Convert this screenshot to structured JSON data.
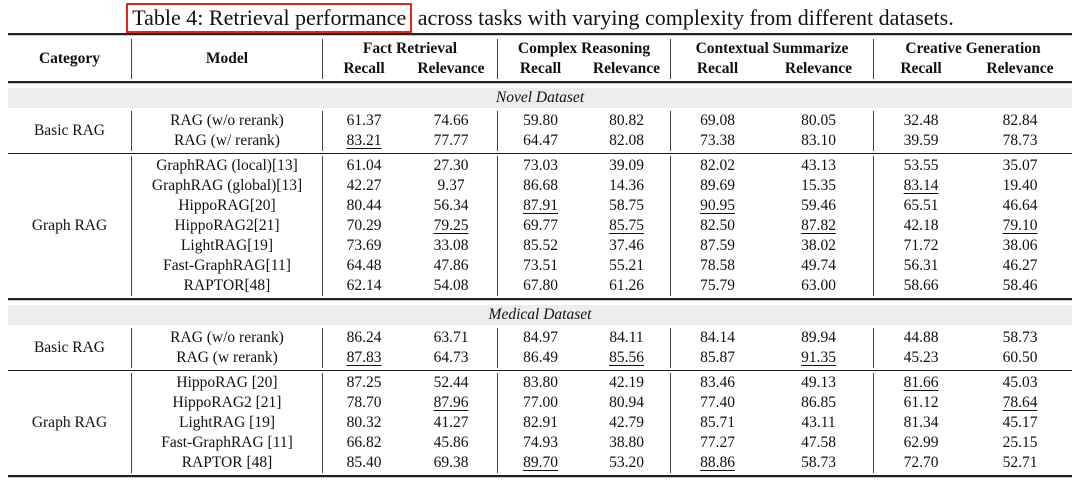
{
  "caption": {
    "highlighted": "Table 4: Retrieval performance",
    "rest": " across tasks with varying complexity from different datasets."
  },
  "colors": {
    "annotation_red": "#e2251d",
    "band_gray": "#ededed",
    "text": "#111111"
  },
  "header": {
    "category": "Category",
    "model": "Model",
    "groups": [
      {
        "label": "Fact Retrieval",
        "sub": [
          "Recall",
          "Relevance"
        ]
      },
      {
        "label": "Complex Reasoning",
        "sub": [
          "Recall",
          "Relevance"
        ]
      },
      {
        "label": "Contextual Summarize",
        "sub": [
          "Recall",
          "Relevance"
        ]
      },
      {
        "label": "Creative Generation",
        "sub": [
          "Recall",
          "Relevance"
        ]
      }
    ]
  },
  "sections": [
    {
      "dataset": "Novel Dataset",
      "groups": [
        {
          "category": "Basic RAG",
          "rows": [
            {
              "model": "RAG (w/o rerank)",
              "values": [
                "61.37",
                "74.66",
                "59.80",
                "80.82",
                "69.08",
                "80.05",
                "32.48",
                "82.84"
              ],
              "underline": []
            },
            {
              "model": "RAG (w/ rerank)",
              "values": [
                "83.21",
                "77.77",
                "64.47",
                "82.08",
                "73.38",
                "83.10",
                "39.59",
                "78.73"
              ],
              "underline": [
                0
              ]
            }
          ]
        },
        {
          "category": "Graph RAG",
          "rows": [
            {
              "model": "GraphRAG (local)[13]",
              "values": [
                "61.04",
                "27.30",
                "73.03",
                "39.09",
                "82.02",
                "43.13",
                "53.55",
                "35.07"
              ],
              "underline": []
            },
            {
              "model": "GraphRAG (global)[13]",
              "values": [
                "42.27",
                "9.37",
                "86.68",
                "14.36",
                "89.69",
                "15.35",
                "83.14",
                "19.40"
              ],
              "underline": [
                6
              ]
            },
            {
              "model": "HippoRAG[20]",
              "values": [
                "80.44",
                "56.34",
                "87.91",
                "58.75",
                "90.95",
                "59.46",
                "65.51",
                "46.64"
              ],
              "underline": [
                2,
                4
              ]
            },
            {
              "model": "HippoRAG2[21]",
              "values": [
                "70.29",
                "79.25",
                "69.77",
                "85.75",
                "82.50",
                "87.82",
                "42.18",
                "79.10"
              ],
              "underline": [
                1,
                3,
                5,
                7
              ]
            },
            {
              "model": "LightRAG[19]",
              "values": [
                "73.69",
                "33.08",
                "85.52",
                "37.46",
                "87.59",
                "38.02",
                "71.72",
                "38.06"
              ],
              "underline": []
            },
            {
              "model": "Fast-GraphRAG[11]",
              "values": [
                "64.48",
                "47.86",
                "73.51",
                "55.21",
                "78.58",
                "49.74",
                "56.31",
                "46.27"
              ],
              "underline": []
            },
            {
              "model": "RAPTOR[48]",
              "values": [
                "62.14",
                "54.08",
                "67.80",
                "61.26",
                "75.79",
                "63.00",
                "58.66",
                "58.46"
              ],
              "underline": []
            }
          ]
        }
      ]
    },
    {
      "dataset": "Medical Dataset",
      "groups": [
        {
          "category": "Basic RAG",
          "rows": [
            {
              "model": "RAG (w/o rerank)",
              "values": [
                "86.24",
                "63.71",
                "84.97",
                "84.11",
                "84.14",
                "89.94",
                "44.88",
                "58.73"
              ],
              "underline": []
            },
            {
              "model": "RAG (w rerank)",
              "values": [
                "87.83",
                "64.73",
                "86.49",
                "85.56",
                "85.87",
                "91.35",
                "45.23",
                "60.50"
              ],
              "underline": [
                0,
                3,
                5
              ]
            }
          ]
        },
        {
          "category": "Graph RAG",
          "rows": [
            {
              "model": "HippoRAG [20]",
              "values": [
                "87.25",
                "52.44",
                "83.80",
                "42.19",
                "83.46",
                "49.13",
                "81.66",
                "45.03"
              ],
              "underline": [
                6
              ]
            },
            {
              "model": "HippoRAG2 [21]",
              "values": [
                "78.70",
                "87.96",
                "77.00",
                "80.94",
                "77.40",
                "86.85",
                "61.12",
                "78.64"
              ],
              "underline": [
                1,
                7
              ]
            },
            {
              "model": "LightRAG [19]",
              "values": [
                "80.32",
                "41.27",
                "82.91",
                "42.79",
                "85.71",
                "43.11",
                "81.34",
                "45.17"
              ],
              "underline": []
            },
            {
              "model": "Fast-GraphRAG [11]",
              "values": [
                "66.82",
                "45.86",
                "74.93",
                "38.80",
                "77.27",
                "47.58",
                "62.99",
                "25.15"
              ],
              "underline": []
            },
            {
              "model": "RAPTOR [48]",
              "values": [
                "85.40",
                "69.38",
                "89.70",
                "53.20",
                "88.86",
                "58.73",
                "72.70",
                "52.71"
              ],
              "underline": [
                2,
                4
              ]
            }
          ]
        }
      ]
    }
  ]
}
